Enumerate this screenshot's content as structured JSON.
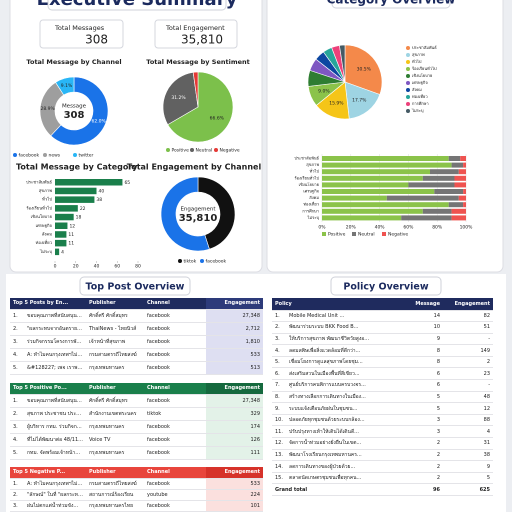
{
  "header": {
    "title": "Executive Summary"
  },
  "kpis": [
    {
      "label": "Total Messages",
      "value": "308"
    },
    {
      "label": "Total Engagement",
      "value": "35,810"
    }
  ],
  "chart_data": [
    {
      "type": "donut",
      "title": "Total Message by Channel",
      "center_label": "Message",
      "categories": [
        "facebook",
        "news",
        "twitter"
      ],
      "values": [
        62.0,
        28.9,
        9.1
      ],
      "value_labels": [
        "62.0%",
        "28.9%",
        "9.1%"
      ],
      "colors": [
        "#1a73e8",
        "#9e9e9e",
        "#29b6f6"
      ]
    },
    {
      "type": "pie",
      "title": "Total Message by Sentiment",
      "categories": [
        "Positive",
        "Neutral",
        "Negative"
      ],
      "values": [
        66.6,
        31.2,
        2.2
      ],
      "value_labels": [
        "66.6%",
        "31.2%",
        null
      ],
      "colors": [
        "#7cc04b",
        "#616161",
        "#e53935"
      ]
    },
    {
      "type": "hbar",
      "title": "Total Message by Category",
      "categories": [
        "ประชาสัมพันธ์",
        "สุขภาพ",
        "ทั่วไป",
        "ร้องเรียนทั่วไป",
        "เชิงนโยบาย",
        "เศรษฐกิจ",
        "สังคม",
        "ท่องเที่ยว",
        "ไม่ระบุ"
      ],
      "values": [
        65,
        40,
        38,
        22,
        18,
        12,
        11,
        11,
        4
      ],
      "color": "#1a7f4b",
      "xlim": [
        0,
        80
      ],
      "xticks": [
        0,
        20,
        40,
        60,
        80
      ]
    },
    {
      "type": "donut",
      "title": "Total Engagement by Channel",
      "center_label": "Engagement",
      "categories": [
        "tiktok",
        "facebook"
      ],
      "values": [
        45,
        55
      ],
      "colors": [
        "#111111",
        "#1a73e8"
      ]
    },
    {
      "type": "pie",
      "title": "Category Overview",
      "categories": [
        "ประชาสัมพันธ์",
        "สุขภาพ",
        "ทั่วไป",
        "ร้องเรียนทั่วไป",
        "เชิงนโยบาย",
        "เศรษฐกิจ",
        "สังคม",
        "ท่องเที่ยว",
        "การศึกษา",
        "ไม่ระบุ"
      ],
      "values": [
        30.5,
        17.7,
        15.9,
        9.0,
        7.0,
        5.5,
        4.5,
        4.0,
        3.5,
        2.4
      ],
      "value_labels": [
        "30.5%",
        "17.7%",
        "15.9%",
        "9.0%",
        null,
        null,
        null,
        null,
        null,
        null
      ],
      "colors": [
        "#f4894a",
        "#9ed4e3",
        "#f5c518",
        "#8bc34a",
        "#2e7d32",
        "#7e57c2",
        "#0d47a1",
        "#26a69a",
        "#ec407a",
        "#455a64"
      ]
    },
    {
      "type": "stacked_hbar",
      "categories": [
        "ประชาสัมพันธ์",
        "สุขภาพ",
        "ทั่วไป",
        "ร้องเรียนทั่วไป",
        "เชิงนโยบาย",
        "เศรษฐกิจ",
        "สังคม",
        "ท่องเที่ยว",
        "การศึกษา",
        "ไม่ระบุ"
      ],
      "series": [
        {
          "name": "Positive",
          "color": "#8bc34a",
          "values": [
            88,
            90,
            75,
            70,
            60,
            78,
            45,
            88,
            70,
            55
          ]
        },
        {
          "name": "Neutral",
          "color": "#757575",
          "values": [
            8,
            8,
            20,
            22,
            32,
            20,
            50,
            10,
            20,
            35
          ]
        },
        {
          "name": "Negative",
          "color": "#ef5350",
          "values": [
            4,
            2,
            5,
            8,
            8,
            2,
            5,
            2,
            10,
            10
          ]
        }
      ],
      "xlim": [
        0,
        100
      ],
      "xticks": [
        {
          "value": 0,
          "label": "0%"
        },
        {
          "value": 20,
          "label": "20%"
        },
        {
          "value": 40,
          "label": "40%"
        },
        {
          "value": 60,
          "label": "60%"
        },
        {
          "value": 80,
          "label": "80%"
        },
        {
          "value": 100,
          "label": "100%"
        }
      ]
    }
  ],
  "sections": {
    "top_posts": "Top Post Overview",
    "policy": "Policy Overview"
  },
  "top_posts": {
    "tables": [
      {
        "columns": [
          "Top 5 Posts by En...",
          "Publisher",
          "Channel",
          "Engagement"
        ],
        "rows": [
          [
            "1.",
            "ขอบคุณภาพที่สนับสนุนโครง...",
            "ศักดิ์ศรี ศักดิ์สมุทร",
            "facebook",
            "27,348"
          ],
          [
            "2.",
            "\"ผลกระทบจากอันตรายกิจ...",
            "ThaiNews - ไทยนิวส์",
            "facebook",
            "2,712"
          ],
          [
            "3.",
            "ร่วมกิจกรรมโครงการพัฒนา...",
            "เจ้าหน้าที่สุขภาพ",
            "facebook",
            "1,810"
          ],
          [
            "4.",
            "A: ทำไมคนกรุงเทพฯไม่ค่อย...",
            "กรมสามตรรถีไทยสงฆ์",
            "facebook",
            "533"
          ],
          [
            "5.",
            "&#128227; เพจ เราพร้อม...",
            "กรุงเทพมหานคร",
            "facebook",
            "513"
          ]
        ]
      },
      {
        "columns": [
          "Top 5 Positive Po...",
          "Publisher",
          "Channel",
          "Engagement"
        ],
        "rows": [
          [
            "1.",
            "ขอบคุณภาพที่สนับสนุนโครง...",
            "ศักดิ์ศรี ศักดิ์สมุทร",
            "facebook",
            "27,348"
          ],
          [
            "2.",
            "สุขภาพ ประชาชน ประชา...",
            "สำนักงานเขตพระนคร",
            "tiktok",
            "329"
          ],
          [
            "3.",
            "ผู้บริหาร กทม. ร่วมกิจกรรม...",
            "กรุงเทพมหานคร",
            "facebook",
            "174"
          ],
          [
            "4.",
            "ที่ไม่ได้พัฒนาต่อ 48/11...",
            "Voice TV",
            "facebook",
            "126"
          ],
          [
            "5.",
            "กทม. จัดพร้อมเจ้าหน้าที่...",
            "กรุงเทพมหานคร",
            "facebook",
            "111"
          ]
        ]
      },
      {
        "columns": [
          "Top 5 Negative P...",
          "Publisher",
          "Channel",
          "Engagement"
        ],
        "rows": [
          [
            "1.",
            "A: ทำไมคนกรุงเทพฯไม่ค่อย...",
            "กรมสามตรรถีไทยสงฆ์",
            "facebook",
            "533"
          ],
          [
            "2.",
            "\"ลักษณ์\" ในที่ \"ผลกระทบ...",
            "สถานการณ์ร้องเรียน",
            "youtube",
            "224"
          ],
          [
            "3.",
            "ฝนไม่ตกแต่น้ำท่วมขัง...",
            "กรุงเทพมหานครไทย",
            "facebook",
            "101"
          ]
        ]
      }
    ]
  },
  "policy_table": {
    "columns": [
      "Policy",
      "Message",
      "Engagement"
    ],
    "rows": [
      [
        "1.",
        "Mobile Medical Unit ...",
        "14",
        "82"
      ],
      [
        "2.",
        "พัฒนาร่วมระบบ BKK Food B...",
        "10",
        "51"
      ],
      [
        "3.",
        "ให้บริการสุขภาพ พัฒนาชีวิตวัยสูงอ...",
        "9",
        "-"
      ],
      [
        "4.",
        "ลดมลพิษเพื่อสิ่งแวดล้อมที่ดีกว่า...",
        "8",
        "149"
      ],
      [
        "5.",
        "เชื่อมโยงการดูแลสุขภาพโดยชุม...",
        "8",
        "2"
      ],
      [
        "6.",
        "ส่งเสริมสวนในเมืองพื้นที่สีเขียว...",
        "6",
        "23"
      ],
      [
        "7.",
        "ศูนย์บริการคนพิการแบบครบวงจร...",
        "6",
        "-"
      ],
      [
        "8.",
        "สร้างทางเลือกการเดินทางในเมือง...",
        "5",
        "48"
      ],
      [
        "9.",
        "ระบบแจ้งเตือนภัยฝนในชุมชน...",
        "5",
        "12"
      ],
      [
        "10.",
        "ปลอดภัยทุกชุมชนด้วยระบบกล้อง...",
        "3",
        "88"
      ],
      [
        "11.",
        "ปรับปรุงทางเท้าให้เดินได้เดินดี...",
        "3",
        "4"
      ],
      [
        "12.",
        "จัดการน้ำท่วมอย่างยั่งยืนในเขต...",
        "2",
        "31"
      ],
      [
        "13.",
        "พัฒนาโรงเรียนกรุงเทพมหานคร...",
        "2",
        "38"
      ],
      [
        "14.",
        "ลดการเดินทางของผู้ป่วยด้วย...",
        "2",
        "9"
      ],
      [
        "15.",
        "ตลาดนัดเกษตรชุมชนเพื่อทุกคน...",
        "2",
        "5"
      ]
    ],
    "total": [
      "Grand total",
      "96",
      "625"
    ]
  }
}
